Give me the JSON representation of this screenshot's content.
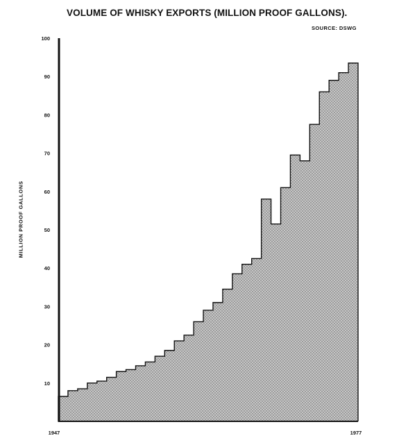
{
  "chart_data": {
    "type": "area",
    "title": "VOLUME OF WHISKY EXPORTS (MILLION PROOF GALLONS).",
    "source": "SOURCE: DSWG",
    "ylabel": "MILLION PROOF GALLONS",
    "xlabel": "",
    "x": [
      1947,
      1948,
      1949,
      1950,
      1951,
      1952,
      1953,
      1954,
      1955,
      1956,
      1957,
      1958,
      1959,
      1960,
      1961,
      1962,
      1963,
      1964,
      1965,
      1966,
      1967,
      1968,
      1969,
      1970,
      1971,
      1972,
      1973,
      1974,
      1975,
      1976,
      1977
    ],
    "values": [
      6.5,
      8,
      8.5,
      10,
      10.5,
      11.5,
      13,
      13.5,
      14.5,
      15.5,
      17,
      18.5,
      21,
      22.5,
      26,
      29,
      31,
      34.5,
      38.5,
      41,
      42.5,
      58,
      51.5,
      61,
      69.5,
      68,
      77.5,
      86,
      89,
      91,
      93.5
    ],
    "xtick_labels": [
      "1947",
      "1977"
    ],
    "yticks": [
      10,
      20,
      30,
      40,
      50,
      60,
      70,
      80,
      90,
      100
    ],
    "ytick_labels": [
      "10",
      "20",
      "30",
      "40",
      "50",
      "60",
      "70",
      "80",
      "90",
      "100"
    ],
    "ylim": [
      0,
      100
    ],
    "grid": false,
    "fill_style": "stepped, crosshatch shading",
    "colors": {
      "fill": "#c9c9c9",
      "hatch": "#8a8a8a",
      "edge": "#111111"
    }
  }
}
